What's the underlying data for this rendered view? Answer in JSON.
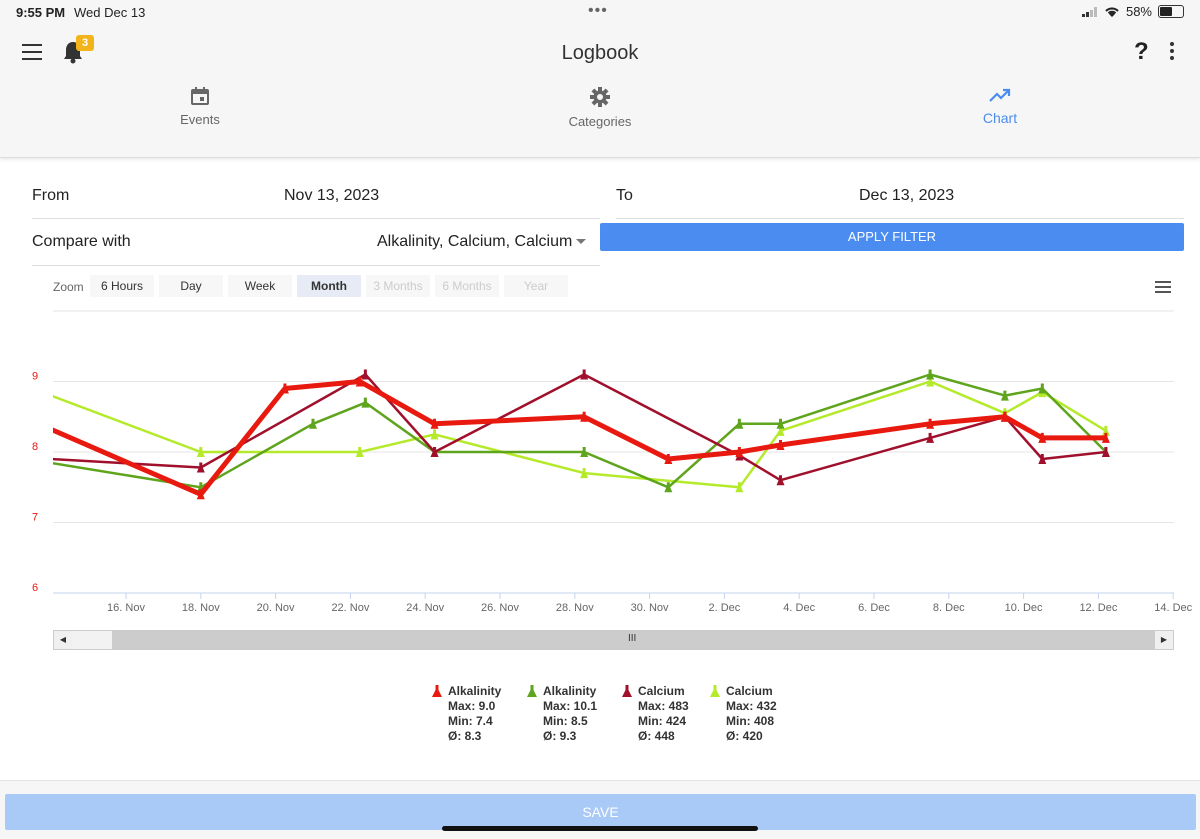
{
  "status": {
    "time": "9:55 PM",
    "date": "Wed Dec 13",
    "battery": "58%"
  },
  "header": {
    "title": "Logbook",
    "notifications": "3",
    "help": "?"
  },
  "tabs": [
    {
      "label": "Events",
      "icon": "calendar-icon"
    },
    {
      "label": "Categories",
      "icon": "gear-icon"
    },
    {
      "label": "Chart",
      "icon": "trending-up-icon",
      "active": true
    }
  ],
  "filter": {
    "from_label": "From",
    "from_value": "Nov 13, 2023",
    "to_label": "To",
    "to_value": "Dec 13, 2023",
    "compare_label": "Compare with",
    "compare_value": "Alkalinity, Calcium, Calcium",
    "apply_label": "APPLY FILTER"
  },
  "zoom": {
    "label": "Zoom",
    "options": [
      "6 Hours",
      "Day",
      "Week",
      "Month",
      "3 Months",
      "6 Months",
      "Year"
    ],
    "selected": "Month"
  },
  "chart_data": {
    "type": "line",
    "y_ticks": [
      "6",
      "7",
      "8",
      "9"
    ],
    "x_ticks": [
      "16. Nov",
      "18. Nov",
      "20. Nov",
      "22. Nov",
      "24. Nov",
      "26. Nov",
      "28. Nov",
      "30. Nov",
      "2. Dec",
      "4. Dec",
      "6. Dec",
      "8. Dec",
      "10. Dec",
      "12. Dec",
      "14. Dec"
    ],
    "series": [
      {
        "name": "Alkalinity",
        "color": "#e8190f",
        "width": 5,
        "points": [
          [
            13.0,
            8.55
          ],
          [
            18.0,
            7.4
          ],
          [
            20.25,
            8.9
          ],
          [
            22.25,
            9.0
          ],
          [
            24.25,
            8.4
          ],
          [
            28.25,
            8.5
          ],
          [
            30.5,
            7.9
          ],
          [
            32.4,
            8.0
          ],
          [
            33.5,
            8.1
          ],
          [
            37.5,
            8.4
          ],
          [
            39.5,
            8.5
          ],
          [
            40.5,
            8.2
          ],
          [
            42.2,
            8.2
          ]
        ]
      },
      {
        "name": "Alkalinity",
        "color": "#5ea41c",
        "width": 2.5,
        "points": [
          [
            13.0,
            7.93
          ],
          [
            18.0,
            7.5
          ],
          [
            21.0,
            8.4
          ],
          [
            22.4,
            8.7
          ],
          [
            24.25,
            8.0
          ],
          [
            28.25,
            8.0
          ],
          [
            30.5,
            7.5
          ],
          [
            32.4,
            8.4
          ],
          [
            33.5,
            8.4
          ],
          [
            37.5,
            9.1
          ],
          [
            39.5,
            8.8
          ],
          [
            40.5,
            8.9
          ],
          [
            42.2,
            8.0
          ]
        ]
      },
      {
        "name": "Calcium",
        "color": "#a0102c",
        "width": 2.5,
        "points": [
          [
            13.0,
            7.93
          ],
          [
            18.0,
            7.78
          ],
          [
            22.4,
            9.1
          ],
          [
            24.25,
            8.0
          ],
          [
            28.25,
            9.1
          ],
          [
            32.4,
            7.95
          ],
          [
            33.5,
            7.6
          ],
          [
            37.5,
            8.2
          ],
          [
            39.5,
            8.5
          ],
          [
            40.5,
            7.9
          ],
          [
            42.2,
            8.0
          ]
        ]
      },
      {
        "name": "Calcium",
        "color": "#b4ea2a",
        "width": 2.5,
        "points": [
          [
            13.0,
            9.0
          ],
          [
            18.0,
            8.0
          ],
          [
            22.25,
            8.0
          ],
          [
            24.25,
            8.25
          ],
          [
            28.25,
            7.7
          ],
          [
            32.4,
            7.5
          ],
          [
            33.5,
            8.3
          ],
          [
            37.5,
            9.0
          ],
          [
            39.5,
            8.55
          ],
          [
            40.5,
            8.85
          ],
          [
            42.2,
            8.3
          ]
        ]
      }
    ],
    "ylim": [
      6,
      9.6
    ],
    "grid": true
  },
  "legend": [
    {
      "name": "Alkalinity",
      "color": "#e8190f",
      "max": "Max: 9.0",
      "min": "Min: 7.4",
      "avg": "Ø: 8.3"
    },
    {
      "name": "Alkalinity",
      "color": "#5ea41c",
      "max": "Max: 10.1",
      "min": "Min: 8.5",
      "avg": "Ø: 9.3"
    },
    {
      "name": "Calcium",
      "color": "#a0102c",
      "max": "Max: 483",
      "min": "Min: 424",
      "avg": "Ø: 448"
    },
    {
      "name": "Calcium",
      "color": "#b4ea2a",
      "max": "Max: 432",
      "min": "Min: 408",
      "avg": "Ø: 420"
    }
  ],
  "footer": {
    "save_label": "SAVE"
  }
}
